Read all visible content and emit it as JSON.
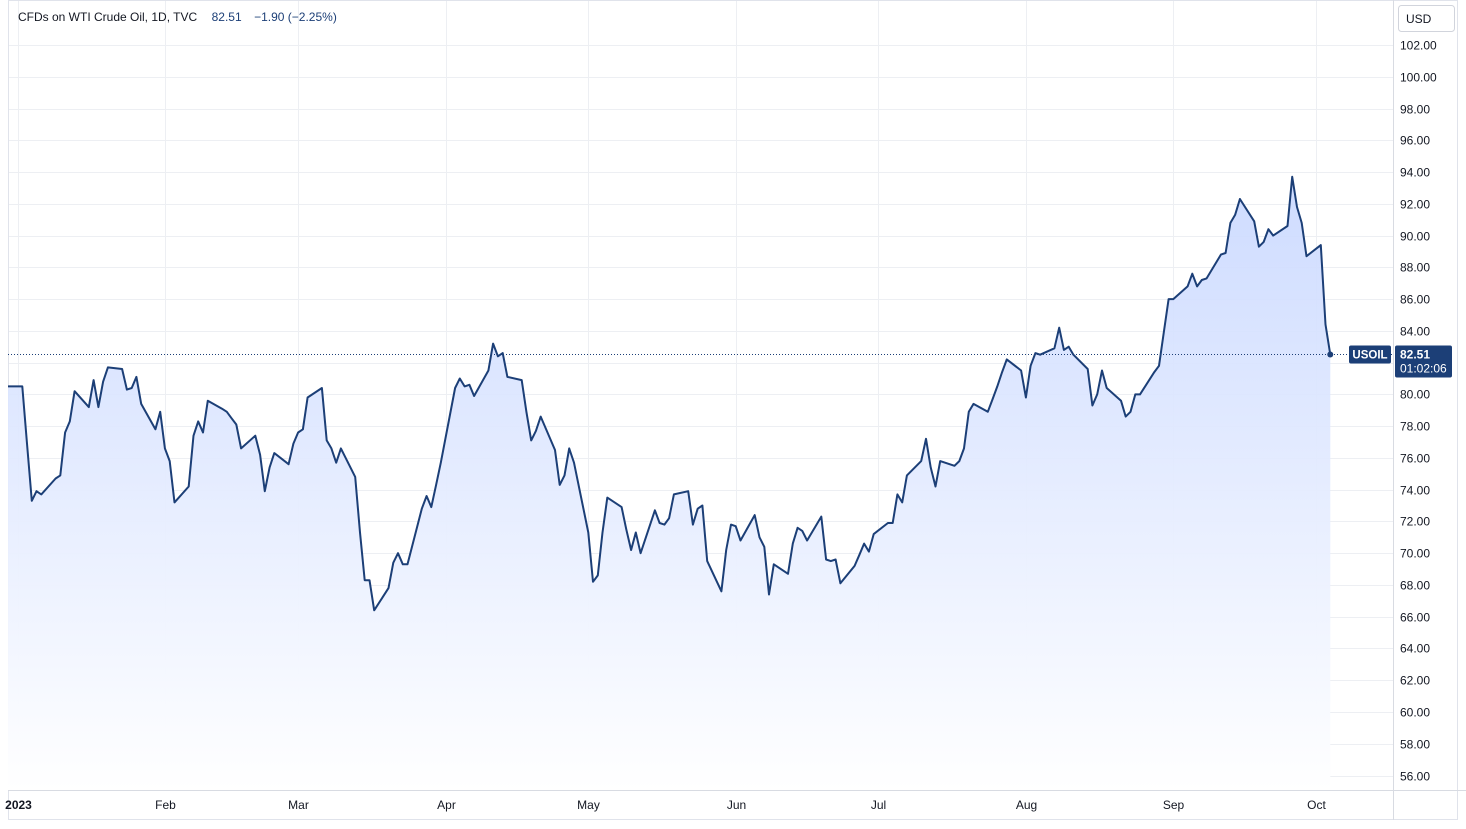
{
  "legend": {
    "title": "CFDs on WTI Crude Oil, 1D, TVC",
    "last": "82.51",
    "change": "−1.90 (−2.25%)"
  },
  "currency_label": "USD",
  "last_badge": {
    "symbol": "USOIL",
    "price": "82.51",
    "countdown": "01:02:06"
  },
  "colors": {
    "line": "#1c3f77",
    "fill_top": "#c9d8ff",
    "fill_bottom": "#ffffff",
    "badge": "#1c3f77"
  },
  "chart_data": {
    "type": "area",
    "symbol": "USOIL",
    "interval": "1D",
    "source": "TVC",
    "ylim": [
      55,
      103
    ],
    "y_ticks": [
      "102.00",
      "100.00",
      "98.00",
      "96.00",
      "94.00",
      "92.00",
      "90.00",
      "88.00",
      "86.00",
      "84.00",
      "82.00",
      "80.00",
      "78.00",
      "76.00",
      "74.00",
      "72.00",
      "70.00",
      "68.00",
      "66.00",
      "64.00",
      "62.00",
      "60.00",
      "58.00",
      "56.00"
    ],
    "x_labels": [
      {
        "label": "2023",
        "date": "2023-01-01",
        "bold": true
      },
      {
        "label": "Feb",
        "date": "2023-02-01"
      },
      {
        "label": "Mar",
        "date": "2023-03-01"
      },
      {
        "label": "Apr",
        "date": "2023-04-01"
      },
      {
        "label": "May",
        "date": "2023-05-01"
      },
      {
        "label": "Jun",
        "date": "2023-06-01"
      },
      {
        "label": "Jul",
        "date": "2023-07-01"
      },
      {
        "label": "Aug",
        "date": "2023-08-01"
      },
      {
        "label": "Sep",
        "date": "2023-09-01"
      },
      {
        "label": "Oct",
        "date": "2023-10-01"
      }
    ],
    "last_value": 82.51,
    "points": [
      [
        "2022-12-30",
        80.5
      ],
      [
        "2023-01-02",
        80.5
      ],
      [
        "2023-01-03",
        76.9
      ],
      [
        "2023-01-04",
        73.3
      ],
      [
        "2023-01-05",
        73.9
      ],
      [
        "2023-01-06",
        73.7
      ],
      [
        "2023-01-09",
        74.7
      ],
      [
        "2023-01-10",
        74.9
      ],
      [
        "2023-01-11",
        77.6
      ],
      [
        "2023-01-12",
        78.3
      ],
      [
        "2023-01-13",
        80.2
      ],
      [
        "2023-01-16",
        79.2
      ],
      [
        "2023-01-17",
        80.9
      ],
      [
        "2023-01-18",
        79.2
      ],
      [
        "2023-01-19",
        80.8
      ],
      [
        "2023-01-20",
        81.7
      ],
      [
        "2023-01-23",
        81.6
      ],
      [
        "2023-01-24",
        80.3
      ],
      [
        "2023-01-25",
        80.4
      ],
      [
        "2023-01-26",
        81.1
      ],
      [
        "2023-01-27",
        79.4
      ],
      [
        "2023-01-30",
        77.8
      ],
      [
        "2023-01-31",
        78.9
      ],
      [
        "2023-02-01",
        76.6
      ],
      [
        "2023-02-02",
        75.8
      ],
      [
        "2023-02-03",
        73.2
      ],
      [
        "2023-02-06",
        74.2
      ],
      [
        "2023-02-07",
        77.4
      ],
      [
        "2023-02-08",
        78.3
      ],
      [
        "2023-02-09",
        77.6
      ],
      [
        "2023-02-10",
        79.6
      ],
      [
        "2023-02-13",
        79.1
      ],
      [
        "2023-02-14",
        78.9
      ],
      [
        "2023-02-15",
        78.5
      ],
      [
        "2023-02-16",
        78.1
      ],
      [
        "2023-02-17",
        76.6
      ],
      [
        "2023-02-20",
        77.4
      ],
      [
        "2023-02-21",
        76.2
      ],
      [
        "2023-02-22",
        73.9
      ],
      [
        "2023-02-23",
        75.4
      ],
      [
        "2023-02-24",
        76.3
      ],
      [
        "2023-02-27",
        75.6
      ],
      [
        "2023-02-28",
        76.9
      ],
      [
        "2023-03-01",
        77.6
      ],
      [
        "2023-03-02",
        77.8
      ],
      [
        "2023-03-03",
        79.8
      ],
      [
        "2023-03-06",
        80.4
      ],
      [
        "2023-03-07",
        77.1
      ],
      [
        "2023-03-08",
        76.6
      ],
      [
        "2023-03-09",
        75.7
      ],
      [
        "2023-03-10",
        76.6
      ],
      [
        "2023-03-13",
        74.8
      ],
      [
        "2023-03-14",
        71.3
      ],
      [
        "2023-03-15",
        68.3
      ],
      [
        "2023-03-16",
        68.3
      ],
      [
        "2023-03-17",
        66.4
      ],
      [
        "2023-03-20",
        67.8
      ],
      [
        "2023-03-21",
        69.4
      ],
      [
        "2023-03-22",
        70.0
      ],
      [
        "2023-03-23",
        69.3
      ],
      [
        "2023-03-24",
        69.3
      ],
      [
        "2023-03-27",
        72.8
      ],
      [
        "2023-03-28",
        73.6
      ],
      [
        "2023-03-29",
        72.9
      ],
      [
        "2023-03-30",
        74.3
      ],
      [
        "2023-03-31",
        75.7
      ],
      [
        "2023-04-03",
        80.4
      ],
      [
        "2023-04-04",
        81.0
      ],
      [
        "2023-04-05",
        80.5
      ],
      [
        "2023-04-06",
        80.6
      ],
      [
        "2023-04-07",
        79.9
      ],
      [
        "2023-04-10",
        81.5
      ],
      [
        "2023-04-11",
        83.2
      ],
      [
        "2023-04-12",
        82.4
      ],
      [
        "2023-04-13",
        82.6
      ],
      [
        "2023-04-14",
        81.1
      ],
      [
        "2023-04-17",
        80.9
      ],
      [
        "2023-04-18",
        78.9
      ],
      [
        "2023-04-19",
        77.1
      ],
      [
        "2023-04-20",
        77.7
      ],
      [
        "2023-04-21",
        78.6
      ],
      [
        "2023-04-24",
        76.5
      ],
      [
        "2023-04-25",
        74.3
      ],
      [
        "2023-04-26",
        74.9
      ],
      [
        "2023-04-27",
        76.6
      ],
      [
        "2023-04-28",
        75.7
      ],
      [
        "2023-05-01",
        71.3
      ],
      [
        "2023-05-02",
        68.2
      ],
      [
        "2023-05-03",
        68.6
      ],
      [
        "2023-05-04",
        71.3
      ],
      [
        "2023-05-05",
        73.5
      ],
      [
        "2023-05-08",
        72.9
      ],
      [
        "2023-05-09",
        71.5
      ],
      [
        "2023-05-10",
        70.2
      ],
      [
        "2023-05-11",
        71.3
      ],
      [
        "2023-05-12",
        70.0
      ],
      [
        "2023-05-15",
        72.7
      ],
      [
        "2023-05-16",
        71.9
      ],
      [
        "2023-05-17",
        71.8
      ],
      [
        "2023-05-18",
        72.2
      ],
      [
        "2023-05-19",
        73.7
      ],
      [
        "2023-05-22",
        73.9
      ],
      [
        "2023-05-23",
        71.8
      ],
      [
        "2023-05-24",
        72.8
      ],
      [
        "2023-05-25",
        73.0
      ],
      [
        "2023-05-26",
        69.5
      ],
      [
        "2023-05-29",
        67.6
      ],
      [
        "2023-05-30",
        70.2
      ],
      [
        "2023-05-31",
        71.8
      ],
      [
        "2023-06-01",
        71.7
      ],
      [
        "2023-06-02",
        70.8
      ],
      [
        "2023-06-05",
        72.4
      ],
      [
        "2023-06-06",
        71.0
      ],
      [
        "2023-06-07",
        70.4
      ],
      [
        "2023-06-08",
        67.4
      ],
      [
        "2023-06-09",
        69.3
      ],
      [
        "2023-06-12",
        68.7
      ],
      [
        "2023-06-13",
        70.6
      ],
      [
        "2023-06-14",
        71.6
      ],
      [
        "2023-06-15",
        71.4
      ],
      [
        "2023-06-16",
        70.8
      ],
      [
        "2023-06-19",
        72.3
      ],
      [
        "2023-06-20",
        69.6
      ],
      [
        "2023-06-21",
        69.5
      ],
      [
        "2023-06-22",
        69.6
      ],
      [
        "2023-06-23",
        68.1
      ],
      [
        "2023-06-26",
        69.2
      ],
      [
        "2023-06-27",
        69.9
      ],
      [
        "2023-06-28",
        70.6
      ],
      [
        "2023-06-29",
        70.1
      ],
      [
        "2023-06-30",
        71.2
      ],
      [
        "2023-07-03",
        71.9
      ],
      [
        "2023-07-04",
        71.9
      ],
      [
        "2023-07-05",
        73.7
      ],
      [
        "2023-07-06",
        73.2
      ],
      [
        "2023-07-07",
        74.9
      ],
      [
        "2023-07-10",
        75.8
      ],
      [
        "2023-07-11",
        77.2
      ],
      [
        "2023-07-12",
        75.4
      ],
      [
        "2023-07-13",
        74.2
      ],
      [
        "2023-07-14",
        75.8
      ],
      [
        "2023-07-17",
        75.5
      ],
      [
        "2023-07-18",
        75.8
      ],
      [
        "2023-07-19",
        76.6
      ],
      [
        "2023-07-20",
        78.9
      ],
      [
        "2023-07-21",
        79.4
      ],
      [
        "2023-07-24",
        78.9
      ],
      [
        "2023-07-25",
        79.7
      ],
      [
        "2023-07-26",
        80.5
      ],
      [
        "2023-07-27",
        81.4
      ],
      [
        "2023-07-28",
        82.2
      ],
      [
        "2023-07-31",
        81.5
      ],
      [
        "2023-08-01",
        79.8
      ],
      [
        "2023-08-02",
        81.8
      ],
      [
        "2023-08-03",
        82.6
      ],
      [
        "2023-08-04",
        82.5
      ],
      [
        "2023-08-07",
        82.9
      ],
      [
        "2023-08-08",
        84.2
      ],
      [
        "2023-08-09",
        82.8
      ],
      [
        "2023-08-10",
        83.0
      ],
      [
        "2023-08-11",
        82.5
      ],
      [
        "2023-08-14",
        81.6
      ],
      [
        "2023-08-15",
        79.3
      ],
      [
        "2023-08-16",
        80.0
      ],
      [
        "2023-08-17",
        81.5
      ],
      [
        "2023-08-18",
        80.4
      ],
      [
        "2023-08-21",
        79.6
      ],
      [
        "2023-08-22",
        78.6
      ],
      [
        "2023-08-23",
        78.9
      ],
      [
        "2023-08-24",
        80.0
      ],
      [
        "2023-08-25",
        80.0
      ],
      [
        "2023-08-28",
        81.4
      ],
      [
        "2023-08-29",
        81.8
      ],
      [
        "2023-08-30",
        83.9
      ],
      [
        "2023-08-31",
        86.0
      ],
      [
        "2023-09-01",
        86.0
      ],
      [
        "2023-09-04",
        86.8
      ],
      [
        "2023-09-05",
        87.6
      ],
      [
        "2023-09-06",
        86.8
      ],
      [
        "2023-09-07",
        87.2
      ],
      [
        "2023-09-08",
        87.3
      ],
      [
        "2023-09-11",
        88.8
      ],
      [
        "2023-09-12",
        88.9
      ],
      [
        "2023-09-13",
        90.8
      ],
      [
        "2023-09-14",
        91.3
      ],
      [
        "2023-09-15",
        92.3
      ],
      [
        "2023-09-18",
        90.9
      ],
      [
        "2023-09-19",
        89.3
      ],
      [
        "2023-09-20",
        89.6
      ],
      [
        "2023-09-21",
        90.4
      ],
      [
        "2023-09-22",
        90.0
      ],
      [
        "2023-09-25",
        90.6
      ],
      [
        "2023-09-26",
        93.7
      ],
      [
        "2023-09-27",
        91.8
      ],
      [
        "2023-09-28",
        90.8
      ],
      [
        "2023-09-29",
        88.7
      ],
      [
        "2023-10-02",
        89.4
      ],
      [
        "2023-10-03",
        84.4
      ],
      [
        "2023-10-04",
        82.5
      ]
    ]
  }
}
